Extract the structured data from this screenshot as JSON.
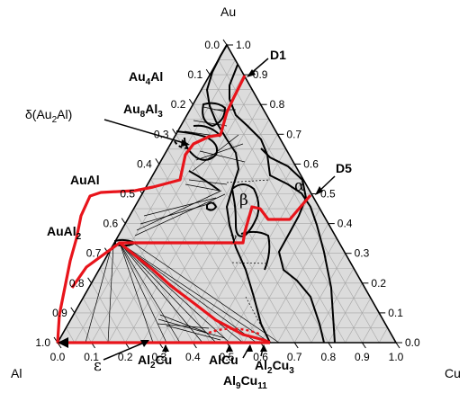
{
  "diagram": {
    "vertices": {
      "top": "Au",
      "left": "Al",
      "right": "Cu"
    },
    "left_ticks": [
      "0.0",
      "0.1",
      "0.2",
      "0.3",
      "0.4",
      "0.5",
      "0.6",
      "0.7",
      "0.8",
      "0.9",
      "1.0"
    ],
    "right_ticks": [
      "1.0",
      "0.9",
      "0.8",
      "0.7",
      "0.6",
      "0.5",
      "0.4",
      "0.3",
      "0.2",
      "0.1",
      "0.0"
    ],
    "bottom_ticks": [
      "0.0",
      "0.1",
      "0.2",
      "0.3",
      "0.4",
      "0.5",
      "0.6",
      "0.7",
      "0.8",
      "0.9",
      "1.0"
    ],
    "labels": {
      "au4al": {
        "base": "Au",
        "sub": "4",
        "tail": "Al"
      },
      "au8al3": {
        "base": "Au",
        "sub": "8",
        "tail": "Al",
        "sub2": "3"
      },
      "delta": {
        "base": "δ(Au",
        "sub": "2",
        "tail": "Al)"
      },
      "aual": {
        "text": "AuAl"
      },
      "aual2": {
        "base": "AuAl",
        "sub": "2"
      },
      "d1": {
        "text": "D1"
      },
      "d5": {
        "text": "D5"
      },
      "alpha": {
        "text": "α"
      },
      "beta": {
        "text": "β"
      },
      "gamma": {
        "text": "γ"
      },
      "epsilon": {
        "text": "ε"
      },
      "al2cu": {
        "base": "Al",
        "sub": "2",
        "tail": "Cu"
      },
      "alcu": {
        "text": "AlCu"
      },
      "al2cu3": {
        "base": "Al",
        "sub": "2",
        "tail": "Cu",
        "sub2": "3"
      },
      "al9cu11": {
        "base": "Al",
        "sub": "9",
        "tail": "Cu",
        "sub2": "11"
      }
    },
    "colors": {
      "path": "#e8141b",
      "grid": "#a6a6a6",
      "fill": "#dcdcdc",
      "line": "#000000"
    }
  }
}
